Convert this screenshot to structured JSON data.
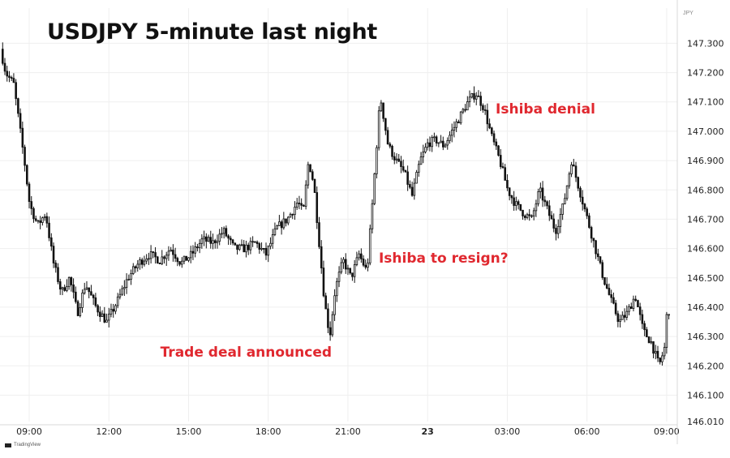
{
  "chart_data": {
    "type": "candlestick",
    "title": "USDJPY 5-minute last night",
    "y_unit_label": "JPY",
    "ylim": [
      146.01,
      147.42
    ],
    "y_ticks": [
      146.1,
      146.2,
      146.3,
      146.4,
      146.5,
      146.6,
      146.7,
      146.8,
      146.9,
      147.0,
      147.1,
      147.2,
      147.3
    ],
    "y_tick_labels": [
      "146.100",
      "146.200",
      "146.300",
      "146.400",
      "146.500",
      "146.600",
      "146.700",
      "146.800",
      "146.900",
      "147.000",
      "147.100",
      "147.200",
      "147.300"
    ],
    "y_bottom_label": "146.010",
    "x_time_range_hours": [
      7.9,
      33.4
    ],
    "x_ticks": [
      {
        "hour": 9,
        "label": "09:00",
        "bold": false
      },
      {
        "hour": 12,
        "label": "12:00",
        "bold": false
      },
      {
        "hour": 15,
        "label": "15:00",
        "bold": false
      },
      {
        "hour": 18,
        "label": "18:00",
        "bold": false
      },
      {
        "hour": 21,
        "label": "21:00",
        "bold": false
      },
      {
        "hour": 24,
        "label": "23",
        "bold": true
      },
      {
        "hour": 27,
        "label": "03:00",
        "bold": false
      },
      {
        "hour": 30,
        "label": "06:00",
        "bold": false
      },
      {
        "hour": 33,
        "label": "09:00",
        "bold": false
      }
    ],
    "bar_interval_minutes": 5,
    "path_hours": [
      8.0,
      8.2,
      8.5,
      8.9,
      9.1,
      9.4,
      9.7,
      10.0,
      10.3,
      10.6,
      10.9,
      11.2,
      11.6,
      12.0,
      12.4,
      12.8,
      13.2,
      13.6,
      14.0,
      14.4,
      14.8,
      15.2,
      15.6,
      16.0,
      16.4,
      16.8,
      17.2,
      17.6,
      18.0,
      18.4,
      18.8,
      19.2,
      19.4,
      19.6,
      19.8,
      20.0,
      20.2,
      20.4,
      20.6,
      20.9,
      21.2,
      21.5,
      21.8,
      22.0,
      22.3,
      22.6,
      22.9,
      23.2,
      23.5,
      23.8,
      24.1,
      24.4,
      24.7,
      25.0,
      25.3,
      25.6,
      25.9,
      26.2,
      26.5,
      26.8,
      27.1,
      27.4,
      27.7,
      28.0,
      28.3,
      28.6,
      28.9,
      29.2,
      29.5,
      29.8,
      30.1,
      30.4,
      30.7,
      31.0,
      31.3,
      31.6,
      31.9,
      32.2,
      32.5,
      32.8,
      33.0,
      33.1
    ],
    "path_prices": [
      147.28,
      147.2,
      147.16,
      146.9,
      146.75,
      146.68,
      146.72,
      146.55,
      146.45,
      146.5,
      146.38,
      146.48,
      146.4,
      146.35,
      146.42,
      146.5,
      146.55,
      146.58,
      146.56,
      146.6,
      146.55,
      146.58,
      146.63,
      146.62,
      146.66,
      146.6,
      146.6,
      146.62,
      146.58,
      146.67,
      146.7,
      146.76,
      146.72,
      146.9,
      146.82,
      146.62,
      146.42,
      146.3,
      146.46,
      146.56,
      146.5,
      146.58,
      146.52,
      146.75,
      147.12,
      146.95,
      146.9,
      146.86,
      146.78,
      146.9,
      146.96,
      146.97,
      146.95,
      147.0,
      147.05,
      147.1,
      147.13,
      147.08,
      146.98,
      146.9,
      146.8,
      146.75,
      146.72,
      146.7,
      146.8,
      146.73,
      146.66,
      146.75,
      146.9,
      146.8,
      146.7,
      146.6,
      146.5,
      146.42,
      146.35,
      146.38,
      146.44,
      146.32,
      146.28,
      146.2,
      146.26,
      146.39
    ],
    "annotations": [
      {
        "text": "Trade deal announced",
        "hour": 20.5,
        "price": 146.24
      },
      {
        "text": "Ishiba to resign?",
        "hour": 22.1,
        "price": 146.56
      },
      {
        "text": "Ishiba denial",
        "hour": 26.5,
        "price": 147.07
      }
    ],
    "grid": true,
    "up_color": "#ffffff",
    "down_color": "#111111",
    "wick_color": "#111111",
    "grid_color": "#efefef",
    "annotation_color": "#e0282f"
  },
  "watermark": "TradingView"
}
